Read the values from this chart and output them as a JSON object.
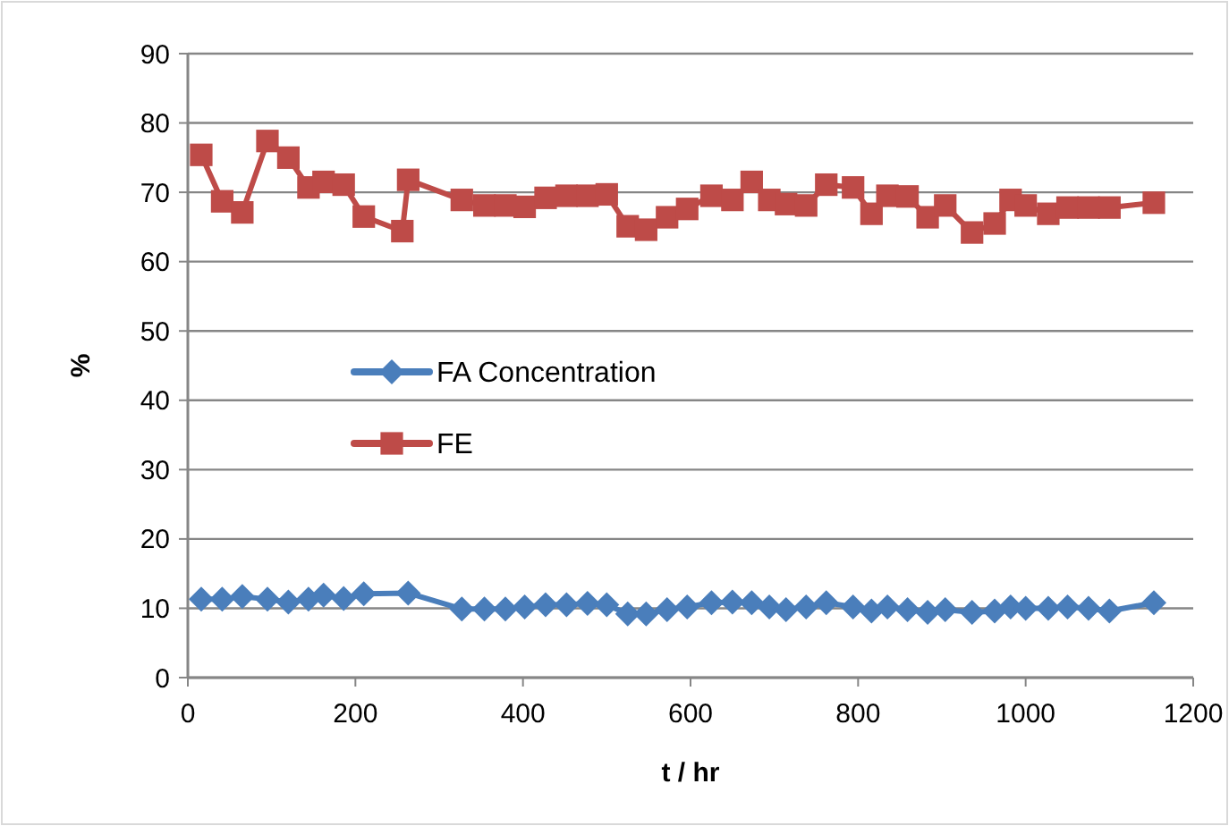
{
  "chart_data": {
    "type": "line",
    "xlabel": "t / hr",
    "ylabel": "%",
    "xlim": [
      0,
      1200
    ],
    "xticks": [
      0,
      200,
      400,
      600,
      800,
      1000,
      1200
    ],
    "ylim": [
      0,
      90
    ],
    "yticks": [
      0,
      10,
      20,
      30,
      40,
      50,
      60,
      70,
      80,
      90
    ],
    "grid": "y",
    "legend": "center left",
    "series": [
      {
        "name": "FA Concentration",
        "color": "#4a7ebb",
        "marker": "diamond",
        "x": [
          16,
          41,
          65,
          95,
          120,
          144,
          162,
          186,
          210,
          263,
          327,
          354,
          379,
          402,
          427,
          452,
          477,
          500,
          525,
          547,
          572,
          596,
          625,
          650,
          673,
          694,
          714,
          738,
          762,
          794,
          816,
          835,
          859,
          883,
          904,
          936,
          963,
          982,
          1000,
          1027,
          1050,
          1075,
          1100,
          1153
        ],
        "values": [
          11.3,
          11.3,
          11.7,
          11.3,
          10.9,
          11.3,
          11.9,
          11.4,
          12.1,
          12.2,
          9.9,
          9.9,
          9.9,
          10.2,
          10.5,
          10.5,
          10.7,
          10.5,
          9.2,
          9.2,
          9.8,
          10.2,
          10.8,
          10.9,
          10.8,
          10.2,
          9.8,
          10.2,
          10.8,
          10.2,
          9.6,
          10.2,
          9.8,
          9.4,
          9.8,
          9.4,
          9.6,
          10.2,
          10.0,
          10.0,
          10.2,
          10.0,
          9.6,
          10.8
        ]
      },
      {
        "name": "FE",
        "color": "#be4b48",
        "marker": "square",
        "x": [
          16,
          41,
          65,
          95,
          120,
          144,
          162,
          186,
          210,
          256,
          263,
          327,
          354,
          379,
          402,
          427,
          452,
          477,
          500,
          525,
          547,
          572,
          596,
          625,
          650,
          673,
          694,
          714,
          738,
          762,
          794,
          816,
          835,
          859,
          883,
          904,
          936,
          963,
          982,
          1000,
          1027,
          1050,
          1075,
          1100,
          1153
        ],
        "values": [
          75.4,
          68.7,
          67.1,
          77.4,
          75.0,
          70.7,
          71.5,
          71.1,
          66.5,
          64.4,
          71.8,
          68.9,
          68.1,
          68.1,
          67.9,
          69.2,
          69.5,
          69.5,
          69.7,
          65.1,
          64.6,
          66.4,
          67.6,
          69.5,
          68.9,
          71.5,
          68.9,
          68.3,
          68.1,
          71.1,
          70.7,
          66.9,
          69.5,
          69.4,
          66.4,
          68.1,
          64.2,
          65.5,
          68.9,
          68.1,
          66.9,
          67.8,
          67.8,
          67.8,
          68.5
        ]
      }
    ]
  }
}
